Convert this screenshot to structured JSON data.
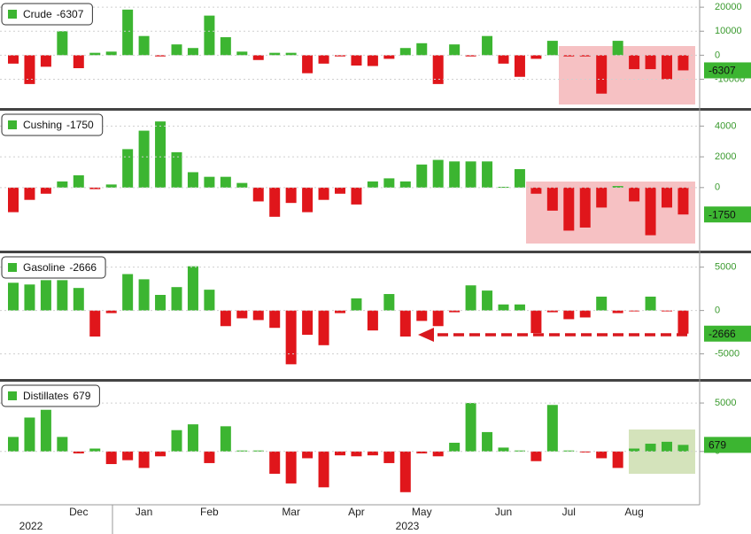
{
  "chart_data": [
    {
      "type": "bar",
      "positive_color": "#3cb531",
      "negative_color": "#e0161b",
      "grid": true,
      "series": [
        {
          "name": "Crude",
          "values": [
            -3500,
            -12000,
            -4800,
            10000,
            -5400,
            1000,
            1500,
            19000,
            8000,
            -500,
            4500,
            3000,
            16500,
            7500,
            1500,
            -2000,
            1000,
            1000,
            -7500,
            -3500,
            -500,
            -4300,
            -4500,
            -1500,
            3000,
            5000,
            -12000,
            4500,
            -500,
            8000,
            -3500,
            -9000,
            -1500,
            6000,
            -500,
            -500,
            -16000,
            6000,
            -5800,
            -5800,
            -10000,
            -6307
          ]
        }
      ],
      "ylim": [
        -22000,
        23000
      ],
      "yticks": [
        20000,
        10000,
        0,
        -10000
      ]
    },
    {
      "type": "bar",
      "positive_color": "#3cb531",
      "negative_color": "#e0161b",
      "grid": true,
      "series": [
        {
          "name": "Cushing",
          "values": [
            -1600,
            -800,
            -400,
            400,
            800,
            -100,
            200,
            2500,
            3700,
            4300,
            2300,
            1000,
            700,
            700,
            300,
            -900,
            -1900,
            -1000,
            -1600,
            -800,
            -400,
            -1100,
            400,
            600,
            400,
            1500,
            1800,
            1700,
            1700,
            1700,
            50,
            1200,
            -400,
            -1500,
            -2800,
            -2600,
            -1300,
            100,
            -900,
            -3100,
            -1300,
            -1750
          ]
        }
      ],
      "ylim": [
        -4100,
        5000
      ],
      "yticks": [
        4000,
        2000,
        0
      ]
    },
    {
      "type": "bar",
      "positive_color": "#3cb531",
      "negative_color": "#e0161b",
      "grid": true,
      "series": [
        {
          "name": "Gasoline",
          "values": [
            3200,
            3000,
            3500,
            3500,
            2600,
            -3000,
            -300,
            4200,
            3600,
            1800,
            2700,
            5100,
            2400,
            -1800,
            -900,
            -1100,
            -2000,
            -6200,
            -2800,
            -4000,
            -300,
            1400,
            -2300,
            1900,
            -3000,
            -1200,
            -1800,
            -200,
            2900,
            2300,
            700,
            700,
            -2600,
            -200,
            -1000,
            -800,
            1600,
            -300,
            -100,
            1600,
            -100,
            -2666
          ]
        }
      ],
      "ylim": [
        -7900,
        6600
      ],
      "yticks": [
        5000,
        0,
        -5000
      ]
    },
    {
      "type": "bar",
      "positive_color": "#3cb531",
      "negative_color": "#e0161b",
      "grid": true,
      "series": [
        {
          "name": "Distillates",
          "values": [
            1500,
            3500,
            4300,
            1500,
            -200,
            300,
            -1300,
            -900,
            -1700,
            -500,
            2200,
            2800,
            -1200,
            2600,
            100,
            100,
            -2300,
            -3300,
            -700,
            -3700,
            -400,
            -500,
            -400,
            -1200,
            -4200,
            -200,
            -500,
            900,
            5000,
            2000,
            400,
            100,
            -1000,
            4800,
            100,
            -100,
            -700,
            -1700,
            300,
            800,
            1000,
            679
          ]
        }
      ],
      "ylim": [
        -5500,
        7200
      ],
      "yticks": [
        5000,
        0
      ],
      "categories": [
        null,
        null,
        null,
        null,
        "Dec",
        null,
        null,
        null,
        "Jan",
        null,
        null,
        null,
        "Feb",
        null,
        null,
        null,
        null,
        "Mar",
        null,
        null,
        null,
        "Apr",
        null,
        null,
        null,
        "May",
        null,
        null,
        null,
        null,
        "Jun",
        null,
        null,
        null,
        "Jul",
        null,
        null,
        null,
        "Aug",
        null,
        null,
        null
      ],
      "years": [
        "2022",
        "2023"
      ]
    }
  ]
}
